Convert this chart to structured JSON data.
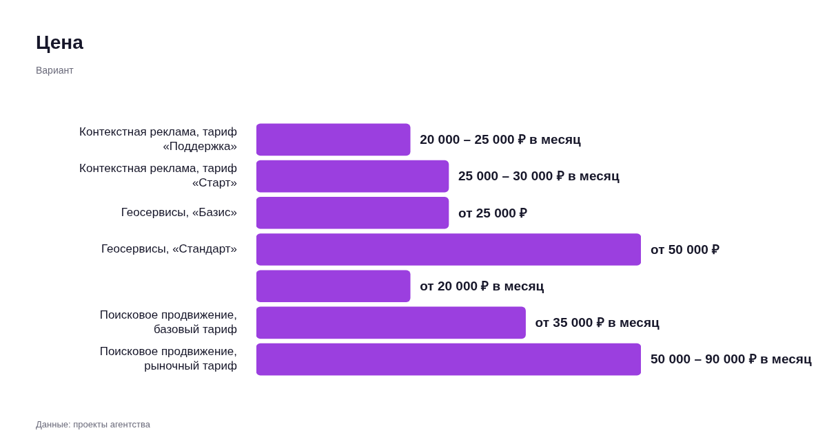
{
  "chart_data": {
    "type": "bar",
    "orientation": "horizontal",
    "tick_labels": "y",
    "title": "Цена",
    "subtitle": "Вариант",
    "categories": [
      "Контекстная реклама, тариф «Поддержка»",
      "Контекстная реклама, тариф «Старт»",
      "Геосервисы, «Базис»",
      "Геосервисы, «Стандарт»",
      null,
      "Поисковое продвижение, базовый тариф",
      "Поисковое продвижение, рыночный тариф"
    ],
    "values": [
      20000,
      25000,
      25000,
      50000,
      20000,
      35000,
      50000
    ],
    "value_labels": [
      "20 000 – 25 000 ₽ в месяц",
      "25 000 – 30 000 ₽ в месяц",
      "от 25 000 ₽",
      "от 50 000 ₽",
      "от 20 000 ₽ в месяц",
      "от 35 000 ₽ в месяц",
      "50 000 – 90 000 ₽ в месяц"
    ],
    "color": "#9b3fdf",
    "legend": false,
    "annotations": [
      "Данные: проекты агентства"
    ]
  }
}
